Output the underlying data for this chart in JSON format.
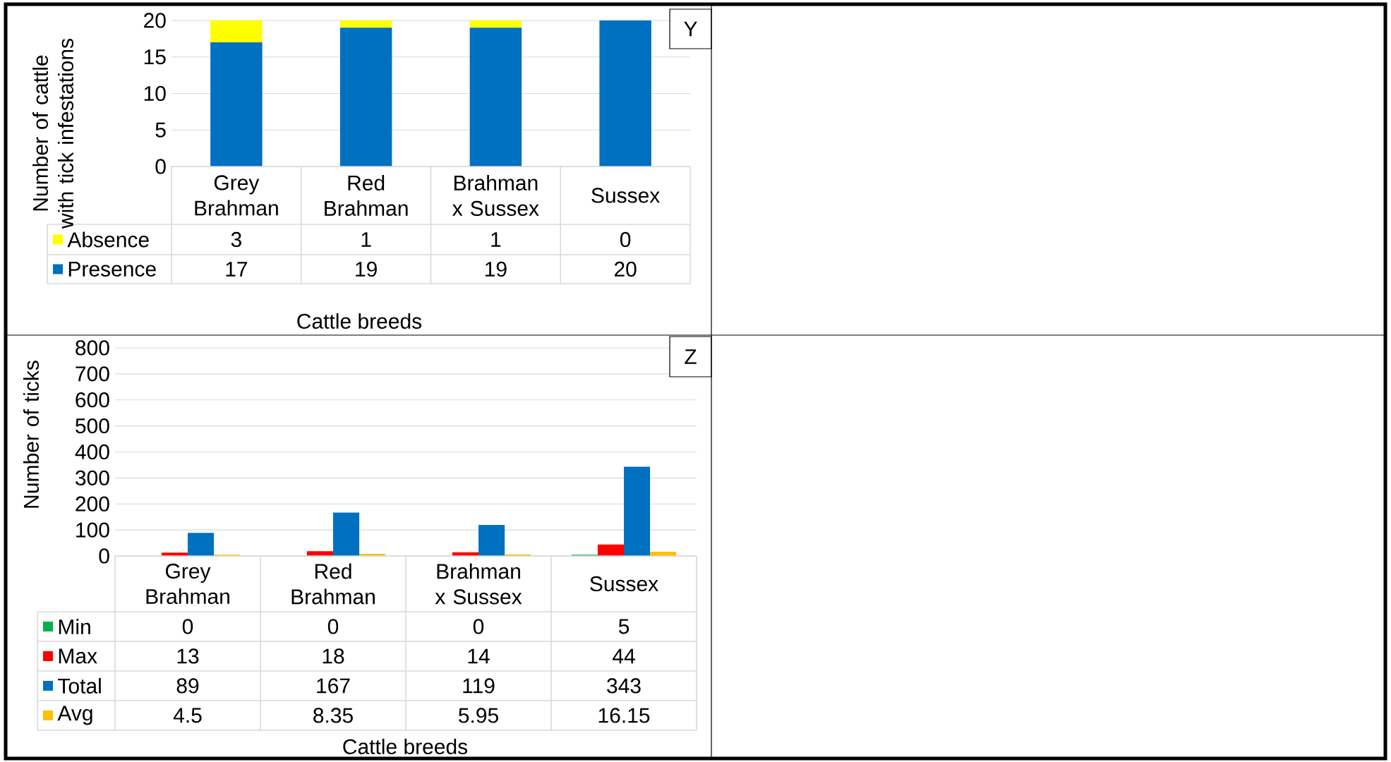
{
  "chart_data": [
    {
      "type": "bar",
      "stacked": true,
      "title": "Y",
      "xlabel": "Cattle breeds",
      "ylabel": "Number of cattle with tick infestations",
      "categories": [
        "Grey Brahman",
        "Red Brahman",
        "Brahman x Sussex",
        "Sussex"
      ],
      "series": [
        {
          "name": "Presence",
          "color": "#0070c0",
          "values": [
            17,
            19,
            19,
            20
          ]
        },
        {
          "name": "Absence",
          "color": "#ffff00",
          "values": [
            3,
            1,
            1,
            0
          ]
        }
      ],
      "ylim": [
        0,
        20
      ],
      "yticks": [
        0,
        5,
        10,
        15,
        20
      ],
      "grid": "y",
      "data_labels": true,
      "legend": "bottom left"
    },
    {
      "type": "bar",
      "title": "Z",
      "xlabel": "Cattle breeds",
      "ylabel": "Number of ticks",
      "categories": [
        "Grey Brahman",
        "Red Brahman",
        "Brahman x Sussex",
        "Sussex"
      ],
      "series": [
        {
          "name": "Min",
          "color": "#00b050",
          "values": [
            0,
            0,
            0,
            5
          ]
        },
        {
          "name": "Max",
          "color": "#ff0000",
          "values": [
            13,
            18,
            14,
            44
          ]
        },
        {
          "name": "Total",
          "color": "#0070c0",
          "values": [
            89,
            167,
            119,
            343
          ]
        },
        {
          "name": "Avg",
          "color": "#ffc000",
          "values": [
            4.5,
            8.35,
            5.95,
            16.15
          ]
        }
      ],
      "ylim": [
        0,
        800
      ],
      "yticks": [
        0,
        100,
        200,
        300,
        400,
        500,
        600,
        700,
        800
      ],
      "grid": "y",
      "data_labels": true,
      "legend": "bottom left"
    }
  ]
}
